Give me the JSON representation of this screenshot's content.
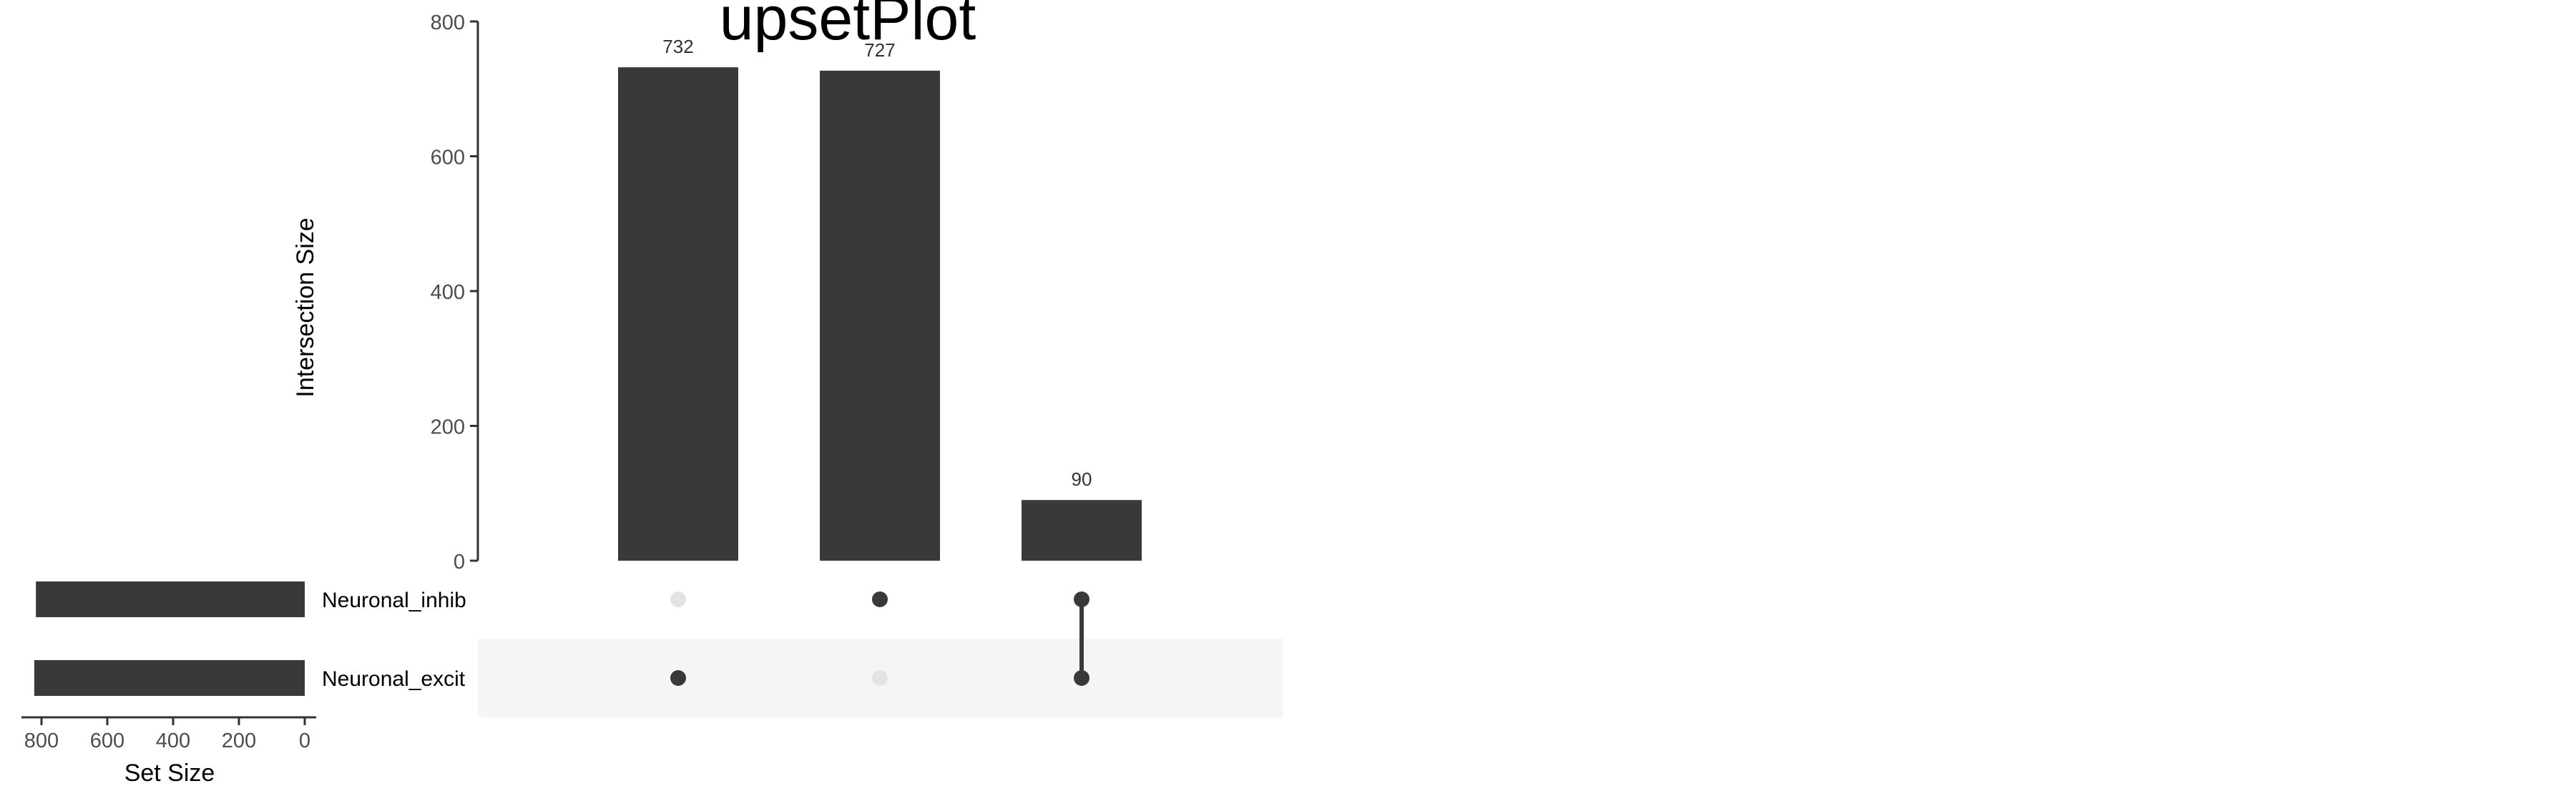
{
  "chart_data": {
    "type": "bar",
    "subtype": "upset",
    "title": "upsetPlot",
    "intersections": {
      "ylabel": "Intersection Size",
      "ylim": [
        0,
        800
      ],
      "yticks": [
        0,
        200,
        400,
        600,
        800
      ],
      "values": [
        732,
        727,
        90
      ],
      "data_labels": [
        "732",
        "727",
        "90"
      ],
      "memberships": [
        [
          "Neuronal_excit"
        ],
        [
          "Neuronal_inhib"
        ],
        [
          "Neuronal_inhib",
          "Neuronal_excit"
        ]
      ]
    },
    "sets": {
      "xlabel": "Set Size",
      "names": [
        "Neuronal_inhib",
        "Neuronal_excit"
      ],
      "sizes": [
        817,
        822
      ],
      "xlim": [
        0,
        800
      ],
      "xticks": [
        800,
        600,
        400,
        200,
        0
      ],
      "reversed": true
    },
    "grid": false,
    "colors": {
      "bar": "#393939",
      "dot_active": "#393939",
      "dot_inactive": "#e3e3e3",
      "stripe": "#f5f5f5",
      "axis": "#333333",
      "text": "#000000",
      "tick_text": "#4d4d4d"
    }
  }
}
